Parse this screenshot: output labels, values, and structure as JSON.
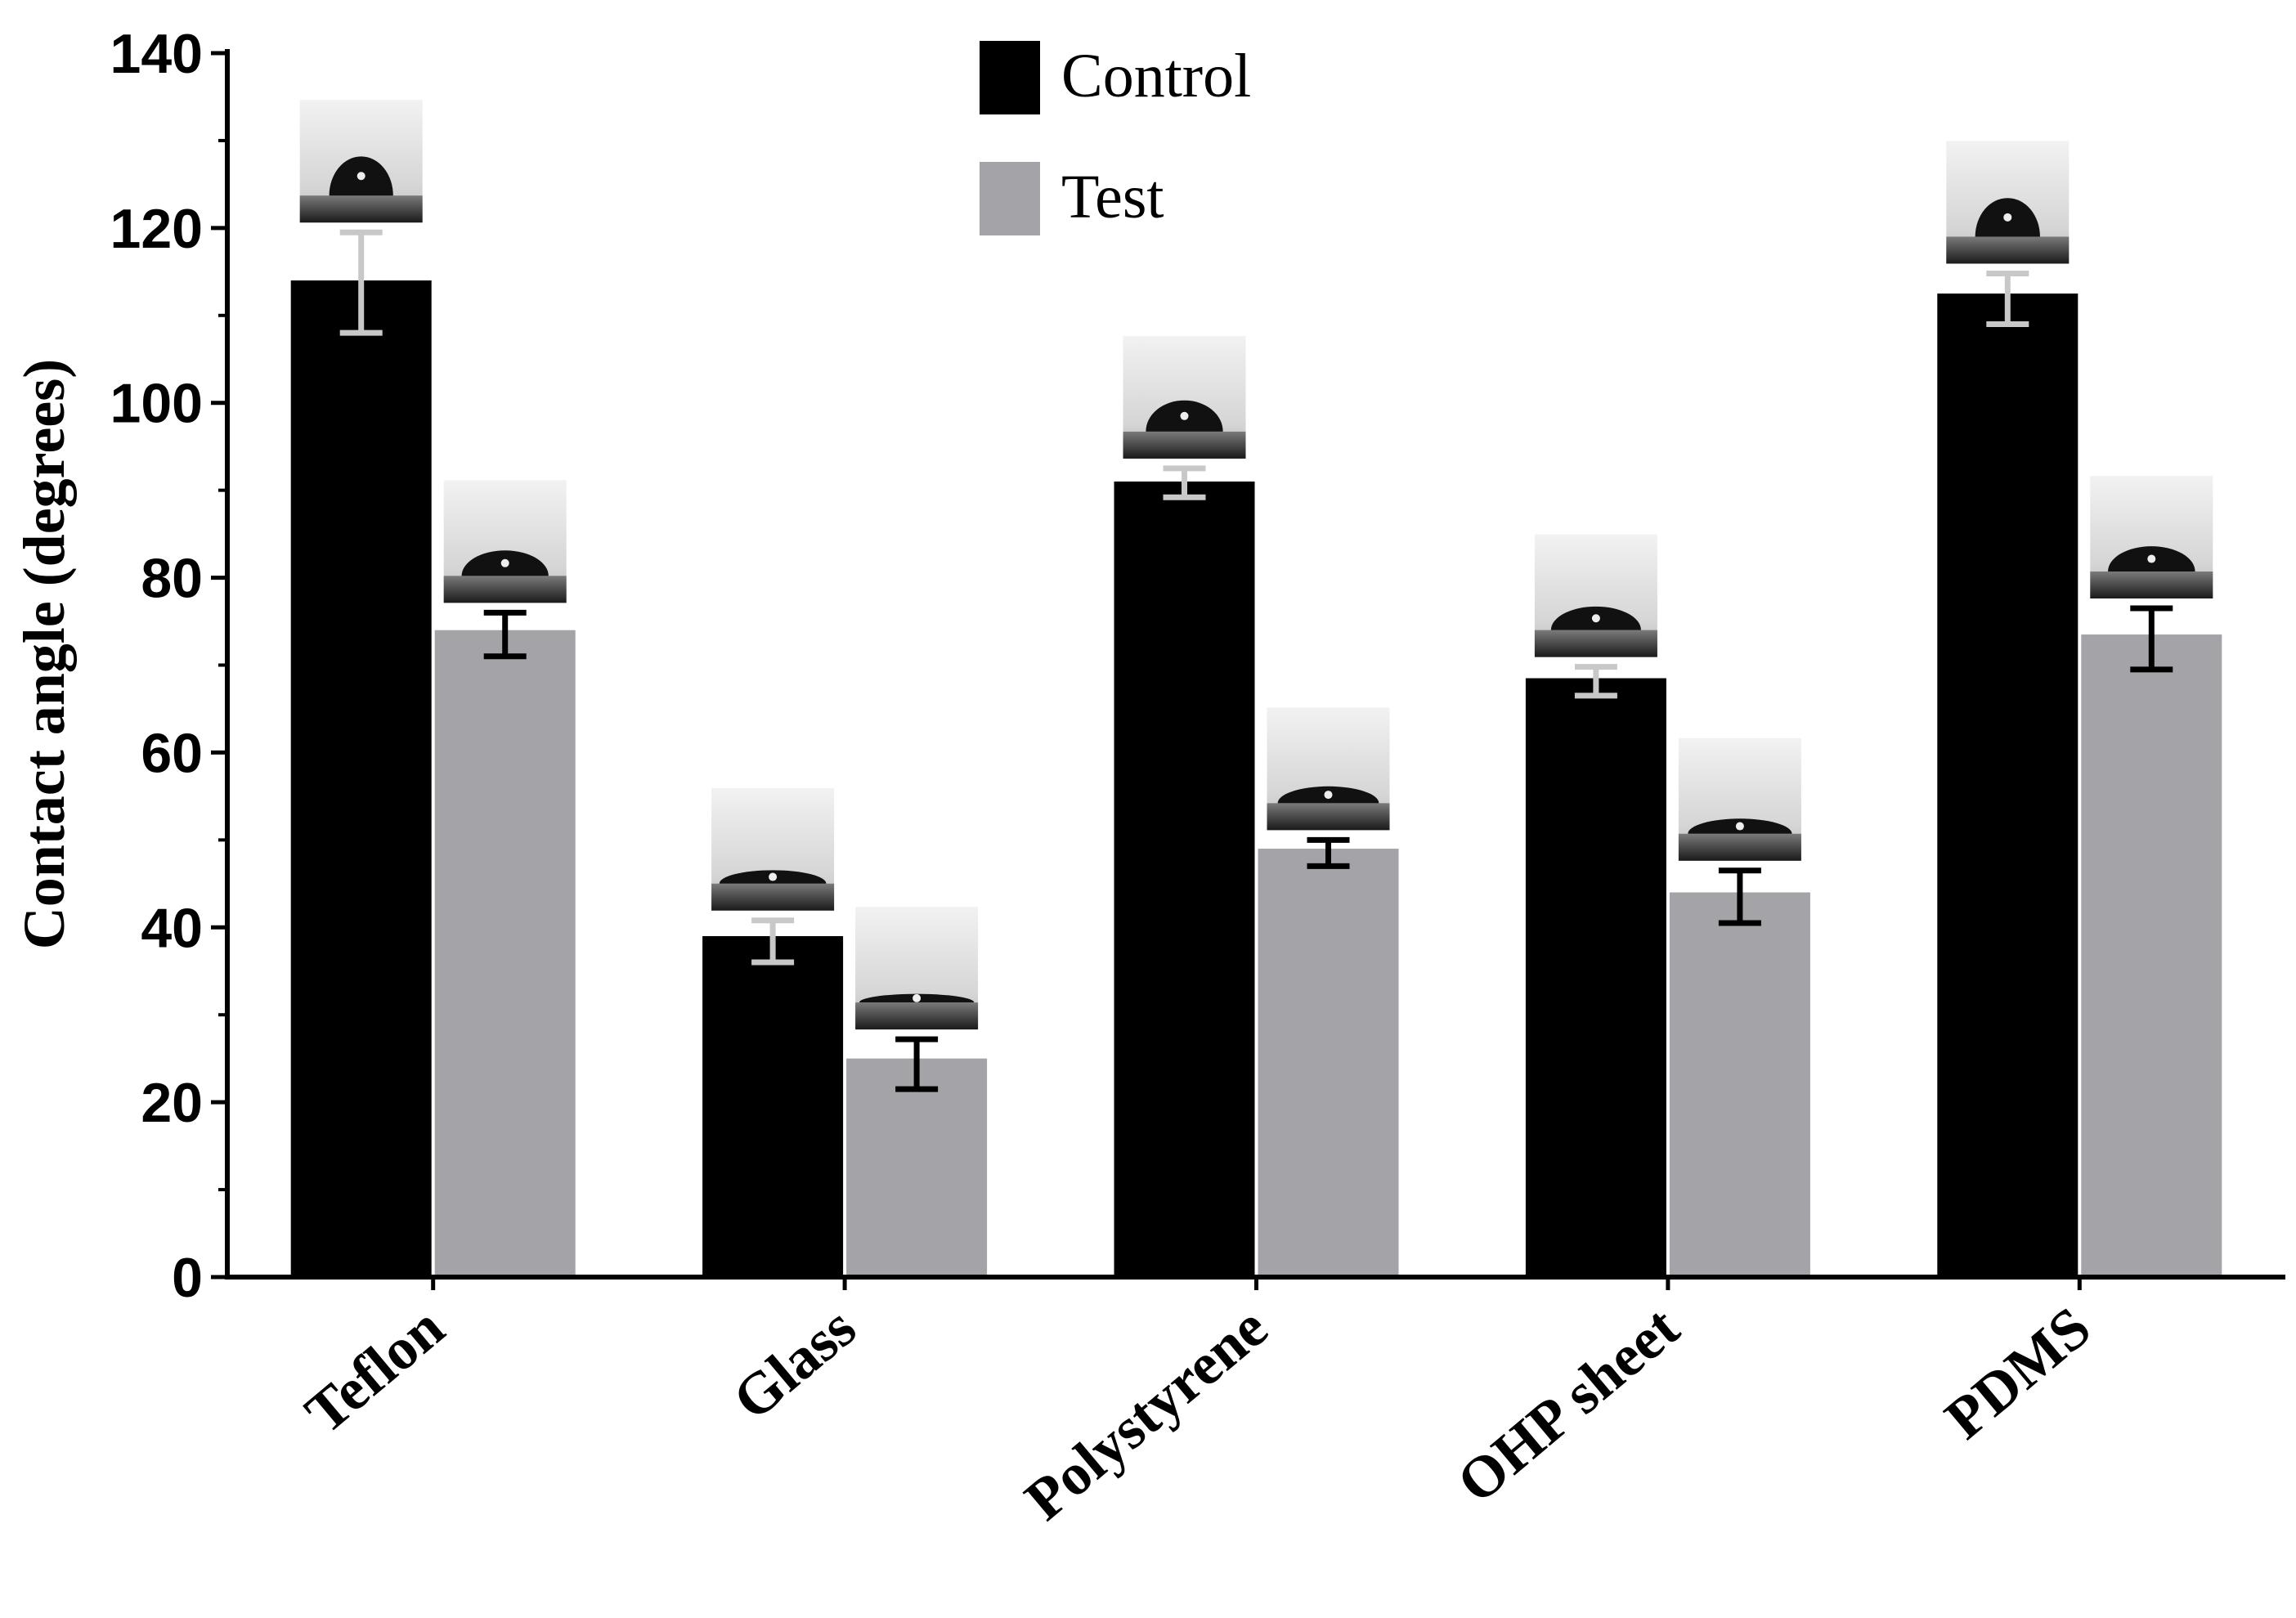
{
  "chart_data": {
    "type": "bar",
    "title": "",
    "xlabel": "",
    "ylabel": "Contact  angle (degrees)",
    "ylim": [
      0,
      140
    ],
    "yticks": [
      0,
      20,
      40,
      60,
      80,
      100,
      120,
      140
    ],
    "categories": [
      "Teflon",
      "Glass",
      "Polystyrene",
      "OHP sheet",
      "PDMS"
    ],
    "series": [
      {
        "name": "Control",
        "color": "#000000",
        "errcolor": "#c8c8c8",
        "values": [
          114,
          39,
          91,
          68.5,
          112.5
        ],
        "err_low": [
          108,
          36,
          89.2,
          66.5,
          109
        ],
        "err_high": [
          119.5,
          40.8,
          92.5,
          69.8,
          114.8
        ]
      },
      {
        "name": "Test",
        "color": "#a3a3a8",
        "errcolor": "#000000",
        "values": [
          74,
          25,
          49,
          44,
          73.5
        ],
        "err_low": [
          71,
          21.5,
          47,
          40.5,
          69.5
        ],
        "err_high": [
          76,
          27.2,
          50,
          46.5,
          76.5
        ]
      }
    ],
    "legend_position": "top-center",
    "droplet_images": "inset photographs of water droplets above each bar"
  }
}
